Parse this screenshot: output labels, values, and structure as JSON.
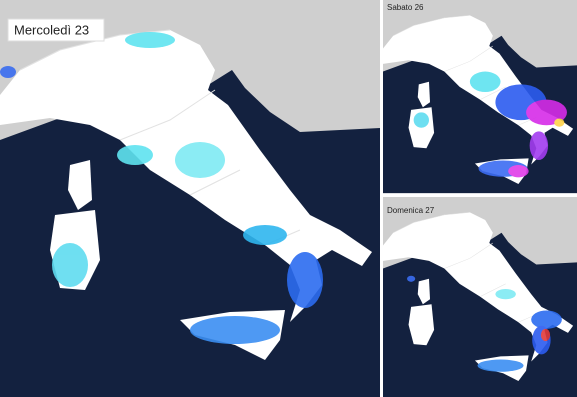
{
  "panels": [
    {
      "label": "Mercoledì 23"
    },
    {
      "label": "Sabato 26"
    },
    {
      "label": "Domenica 27"
    }
  ]
}
